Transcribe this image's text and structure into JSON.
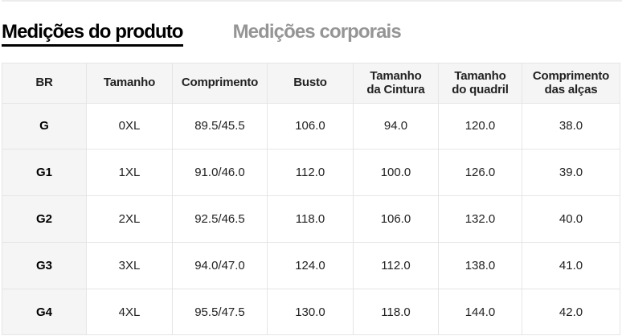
{
  "colors": {
    "active_tab": "#000000",
    "inactive_tab": "#959595",
    "header_background": "#f5f5f5",
    "border": "#e5e5e5",
    "body_text": "#222222"
  },
  "tabs": [
    {
      "label": "Medições do produto",
      "active": true
    },
    {
      "label": "Medições corporais",
      "active": false
    }
  ],
  "size_table": {
    "columns": [
      "BR",
      "Tamanho",
      "Comprimento",
      "Busto",
      "Tamanho\nda Cintura",
      "Tamanho\ndo quadril",
      "Comprimento\ndas alças"
    ],
    "rows": [
      [
        "G",
        "0XL",
        "89.5/45.5",
        "106.0",
        "94.0",
        "120.0",
        "38.0"
      ],
      [
        "G1",
        "1XL",
        "91.0/46.0",
        "112.0",
        "100.0",
        "126.0",
        "39.0"
      ],
      [
        "G2",
        "2XL",
        "92.5/46.5",
        "118.0",
        "106.0",
        "132.0",
        "40.0"
      ],
      [
        "G3",
        "3XL",
        "94.0/47.0",
        "124.0",
        "112.0",
        "138.0",
        "41.0"
      ],
      [
        "G4",
        "4XL",
        "95.5/47.5",
        "130.0",
        "118.0",
        "144.0",
        "42.0"
      ]
    ]
  }
}
